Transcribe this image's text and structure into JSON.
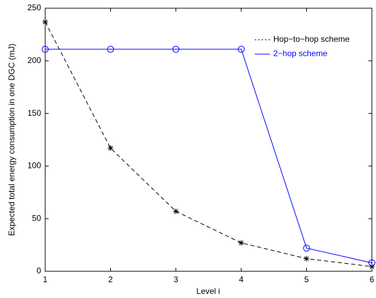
{
  "chart_data": {
    "type": "line",
    "x_label": "Level i",
    "y_label": "Expected total energy consumption in one DGC (mJ)",
    "x": [
      1,
      2,
      3,
      4,
      5,
      6
    ],
    "series": [
      {
        "name": "Hop−to−hop scheme",
        "color": "#000000",
        "style": "dashed",
        "marker": "star",
        "values": [
          237,
          117,
          57,
          27,
          12,
          4.5
        ]
      },
      {
        "name": "2−hop scheme",
        "color": "#0000ff",
        "style": "solid",
        "marker": "circle",
        "values": [
          211,
          211,
          211,
          211,
          22,
          8
        ]
      }
    ],
    "xlim": [
      1,
      6
    ],
    "xticks": [
      1,
      2,
      3,
      4,
      5,
      6
    ],
    "ylim": [
      0,
      250
    ],
    "yticks": [
      0,
      50,
      100,
      150,
      200,
      250
    ],
    "grid": false,
    "legend": "upper right"
  }
}
